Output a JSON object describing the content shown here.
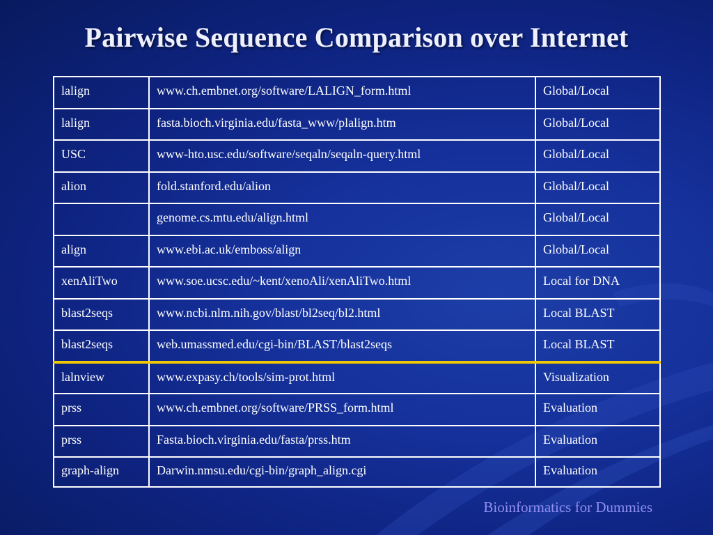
{
  "slide": {
    "title": "Pairwise Sequence Comparison over Internet",
    "footer": "Bioinformatics for Dummies"
  },
  "table": {
    "rows": [
      {
        "name": "lalign",
        "url": "www.ch.embnet.org/software/LALIGN_form.html",
        "type": "Global/Local"
      },
      {
        "name": "lalign",
        "url": "fasta.bioch.virginia.edu/fasta_www/plalign.htm",
        "type": "Global/Local"
      },
      {
        "name": "USC",
        "url": "www-hto.usc.edu/software/seqaln/seqaln-query.html",
        "type": "Global/Local"
      },
      {
        "name": "alion",
        "url": "fold.stanford.edu/alion",
        "type": "Global/Local"
      },
      {
        "name": "",
        "url": "genome.cs.mtu.edu/align.html",
        "type": "Global/Local"
      },
      {
        "name": "align",
        "url": "www.ebi.ac.uk/emboss/align",
        "type": "Global/Local"
      },
      {
        "name": "xenAliTwo",
        "url": "www.soe.ucsc.edu/~kent/xenoAli/xenAliTwo.html",
        "type": "Local for DNA"
      },
      {
        "name": "blast2seqs",
        "url": "www.ncbi.nlm.nih.gov/blast/bl2seq/bl2.html",
        "type": "Local BLAST"
      },
      {
        "name": "blast2seqs",
        "url": "web.umassmed.edu/cgi-bin/BLAST/blast2seqs",
        "type": "Local BLAST"
      },
      {
        "name": "lalnview",
        "url": "www.expasy.ch/tools/sim-prot.html",
        "type": "Visualization"
      },
      {
        "name": "prss",
        "url": "www.ch.embnet.org/software/PRSS_form.html",
        "type": "Evaluation"
      },
      {
        "name": "prss",
        "url": "Fasta.bioch.virginia.edu/fasta/prss.htm",
        "type": "Evaluation"
      },
      {
        "name": "graph-align",
        "url": "Darwin.nmsu.edu/cgi-bin/graph_align.cgi",
        "type": "Evaluation"
      }
    ]
  },
  "colors": {
    "background": "#15309a",
    "divider": "#f0c800",
    "footer_text": "#8f8ff0"
  }
}
